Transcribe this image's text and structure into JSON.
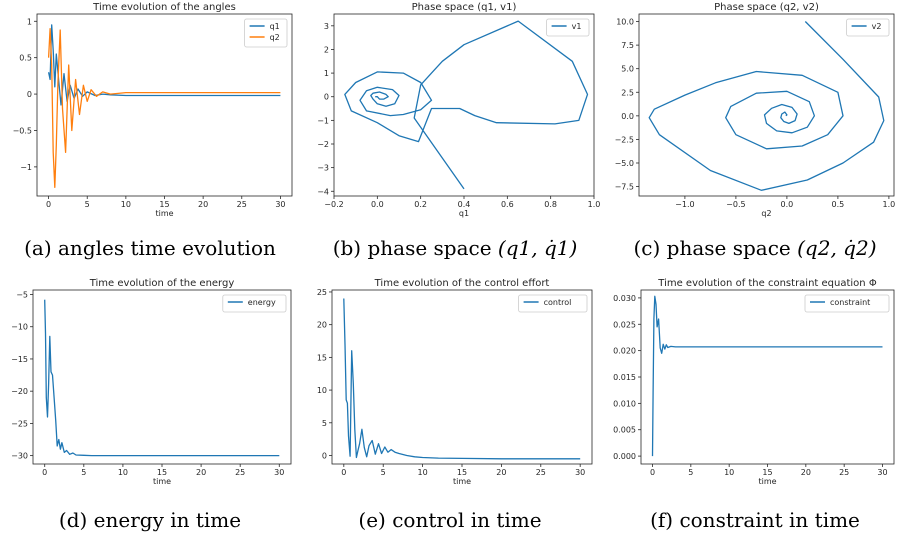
{
  "captions": {
    "a": "(a) angles time evolution",
    "b_prefix": "(b) phase space",
    "b_math": "(q1, q̇1)",
    "c_prefix": "(c) phase space",
    "c_math": "(q2, q̇2)",
    "d": "(d) energy in time",
    "e": "(e) control in time",
    "f": "(f) constraint in time"
  },
  "colors": {
    "series1": "#1f77b4",
    "series2": "#ff7f0e",
    "axis": "#262626"
  },
  "chart_data": [
    {
      "id": "a",
      "type": "line",
      "title": "Time evolution of the angles",
      "xlabel": "time",
      "ylabel": "",
      "xlim": [
        -1.5,
        31.5
      ],
      "ylim": [
        -1.4,
        1.1
      ],
      "xticks": [
        0,
        5,
        10,
        15,
        20,
        25,
        30
      ],
      "yticks": [
        -1.0,
        -0.5,
        0.0,
        0.5,
        1.0
      ],
      "legend": "top-right",
      "series": [
        {
          "name": "q1",
          "color": "#1f77b4",
          "x": [
            0,
            0.2,
            0.4,
            0.6,
            0.8,
            1.0,
            1.3,
            1.6,
            2.0,
            2.4,
            2.8,
            3.3,
            3.8,
            4.4,
            5.0,
            6.0,
            7.0,
            8.0,
            10,
            15,
            20,
            25,
            30
          ],
          "y": [
            0.3,
            0.2,
            0.95,
            0.6,
            0.1,
            0.55,
            0.2,
            -0.15,
            0.28,
            -0.1,
            0.12,
            -0.06,
            0.07,
            -0.03,
            0.03,
            -0.02,
            0.0,
            -0.01,
            -0.02,
            -0.02,
            -0.02,
            -0.02,
            -0.02
          ]
        },
        {
          "name": "q2",
          "color": "#ff7f0e",
          "x": [
            0,
            0.2,
            0.4,
            0.6,
            0.8,
            1.0,
            1.2,
            1.5,
            1.8,
            2.2,
            2.6,
            3.0,
            3.5,
            4.0,
            4.5,
            5.0,
            5.5,
            6.2,
            7.0,
            8.0,
            10,
            15,
            20,
            25,
            30
          ],
          "y": [
            0.5,
            0.9,
            0.4,
            -0.8,
            -1.28,
            -0.7,
            0.15,
            0.88,
            -0.2,
            -0.8,
            0.4,
            -0.5,
            0.2,
            -0.28,
            0.12,
            -0.1,
            0.06,
            -0.03,
            0.03,
            0.0,
            0.02,
            0.02,
            0.02,
            0.02,
            0.02
          ]
        }
      ]
    },
    {
      "id": "b",
      "type": "line",
      "title": "Phase space (q1, v1)",
      "xlabel": "q1",
      "ylabel": "",
      "xlim": [
        -0.2,
        1.0
      ],
      "ylim": [
        -4.2,
        3.5
      ],
      "xticks": [
        -0.2,
        0.0,
        0.2,
        0.4,
        0.6,
        0.8,
        1.0
      ],
      "xticklabels": [
        "−0.2",
        "0.0",
        "0.2",
        "0.4",
        "0.6",
        "0.8",
        "1.0"
      ],
      "yticks": [
        -4,
        -3,
        -2,
        -1,
        0,
        1,
        2,
        3
      ],
      "legend": "top-right",
      "series": [
        {
          "name": "v1",
          "color": "#1f77b4",
          "x": [
            0.4,
            0.17,
            0.2,
            0.25,
            0.3,
            0.4,
            0.65,
            0.9,
            0.97,
            0.93,
            0.82,
            0.55,
            0.45,
            0.38,
            0.25,
            0.19,
            0.1,
            0.0,
            -0.12,
            -0.15,
            -0.1,
            0.0,
            0.12,
            0.2,
            0.25,
            0.2,
            0.12,
            0.06,
            -0.05,
            -0.08,
            -0.05,
            0.0,
            0.07,
            0.1,
            0.08,
            0.04,
            0.0,
            -0.02,
            -0.03,
            -0.02,
            0.01,
            0.04,
            0.05,
            0.03,
            0.01,
            0.0,
            -0.01
          ],
          "y": [
            -3.9,
            -0.9,
            0.5,
            1.0,
            1.5,
            2.2,
            3.2,
            1.5,
            0.1,
            -1.0,
            -1.15,
            -1.1,
            -0.8,
            -0.5,
            -0.5,
            -1.9,
            -1.65,
            -1.1,
            -0.6,
            0.1,
            0.6,
            1.05,
            1.0,
            0.6,
            -0.15,
            -0.55,
            -0.75,
            -0.8,
            -0.6,
            -0.15,
            0.25,
            0.4,
            0.3,
            0.05,
            -0.3,
            -0.4,
            -0.3,
            -0.1,
            0.05,
            0.15,
            0.2,
            0.1,
            0.0,
            -0.1,
            -0.1,
            0.0,
            0.0
          ]
        }
      ]
    },
    {
      "id": "c",
      "type": "line",
      "title": "Phase space (q2, v2)",
      "xlabel": "q2",
      "ylabel": "",
      "xlim": [
        -1.45,
        1.05
      ],
      "ylim": [
        -8.5,
        10.8
      ],
      "xticks": [
        -1.0,
        -0.5,
        0.0,
        0.5,
        1.0
      ],
      "xticklabels": [
        "−1.0",
        "−0.5",
        "0.0",
        "0.5",
        "1.0"
      ],
      "yticks": [
        -7.5,
        -5.0,
        -2.5,
        0.0,
        2.5,
        5.0,
        7.5,
        10.0
      ],
      "yticklabels": [
        "−7.5",
        "−5.0",
        "−2.5",
        "0.0",
        "2.5",
        "5.0",
        "7.5",
        "10.0"
      ],
      "legend": "top-right",
      "series": [
        {
          "name": "v2",
          "color": "#1f77b4",
          "x": [
            0.18,
            0.55,
            0.9,
            0.95,
            0.85,
            0.55,
            0.2,
            -0.25,
            -0.75,
            -1.25,
            -1.35,
            -1.3,
            -1.0,
            -0.7,
            -0.3,
            0.15,
            0.5,
            0.55,
            0.4,
            0.15,
            -0.2,
            -0.5,
            -0.6,
            -0.55,
            -0.3,
            0.0,
            0.22,
            0.27,
            0.2,
            0.05,
            -0.1,
            -0.2,
            -0.22,
            -0.15,
            -0.05,
            0.05,
            0.1,
            0.08,
            0.02,
            -0.03,
            -0.06,
            -0.05,
            -0.02,
            0.0,
            -0.01
          ],
          "y": [
            10.0,
            6.0,
            2.0,
            -0.5,
            -2.8,
            -5.0,
            -6.8,
            -7.9,
            -5.8,
            -2.0,
            -0.2,
            0.7,
            2.2,
            3.5,
            4.7,
            4.3,
            2.5,
            0.0,
            -2.0,
            -3.2,
            -3.5,
            -2.0,
            -0.2,
            1.0,
            2.4,
            2.6,
            1.5,
            0.0,
            -1.2,
            -1.8,
            -1.6,
            -0.8,
            0.1,
            0.8,
            1.2,
            0.9,
            0.2,
            -0.5,
            -0.8,
            -0.6,
            -0.2,
            0.2,
            0.4,
            0.1,
            0.0
          ]
        }
      ]
    },
    {
      "id": "d",
      "type": "line",
      "title": "Time evolution of the energy",
      "xlabel": "time",
      "ylabel": "",
      "xlim": [
        -1.5,
        31.5
      ],
      "ylim": [
        -31.3,
        -4.3
      ],
      "xticks": [
        0,
        5,
        10,
        15,
        20,
        25,
        30
      ],
      "yticks": [
        -30,
        -25,
        -20,
        -15,
        -10,
        -5
      ],
      "yticklabels": [
        "−30",
        "−25",
        "−20",
        "−15",
        "−10",
        "−5"
      ],
      "legend": "top-right",
      "series": [
        {
          "name": "energy",
          "color": "#1f77b4",
          "x": [
            0,
            0.1,
            0.2,
            0.35,
            0.5,
            0.65,
            0.8,
            1.0,
            1.2,
            1.4,
            1.6,
            1.8,
            2.0,
            2.2,
            2.5,
            2.8,
            3.2,
            3.6,
            4.0,
            5.0,
            6.0,
            8.0,
            10,
            15,
            20,
            25,
            30
          ],
          "y": [
            -5.8,
            -11,
            -21,
            -24,
            -19,
            -11.5,
            -17,
            -17.5,
            -21,
            -24.5,
            -28.5,
            -27.5,
            -29.0,
            -28.0,
            -29.5,
            -29.2,
            -29.8,
            -29.6,
            -29.9,
            -29.95,
            -30,
            -30,
            -30,
            -30,
            -30,
            -30,
            -30
          ]
        }
      ]
    },
    {
      "id": "e",
      "type": "line",
      "title": "Time evolution of the control effort",
      "xlabel": "time",
      "ylabel": "",
      "xlim": [
        -1.5,
        31.5
      ],
      "ylim": [
        -1.3,
        25.3
      ],
      "xticks": [
        0,
        5,
        10,
        15,
        20,
        25,
        30
      ],
      "yticks": [
        0,
        5,
        10,
        15,
        20,
        25
      ],
      "legend": "top-right",
      "series": [
        {
          "name": "control",
          "color": "#1f77b4",
          "x": [
            0,
            0.15,
            0.3,
            0.45,
            0.6,
            0.8,
            1.0,
            1.2,
            1.4,
            1.6,
            1.8,
            2.0,
            2.3,
            2.6,
            2.9,
            3.2,
            3.6,
            4.0,
            4.4,
            4.8,
            5.2,
            5.6,
            6.0,
            6.5,
            7.0,
            8.0,
            9.0,
            10,
            12,
            15,
            20,
            25,
            30
          ],
          "y": [
            24,
            17,
            8.5,
            8,
            3,
            -0.1,
            16,
            11,
            4,
            -0.3,
            0.8,
            1.8,
            4.0,
            1.2,
            -0.2,
            1.5,
            2.3,
            0.2,
            1.8,
            0.3,
            1.3,
            0.5,
            0.9,
            0.5,
            0.3,
            0.0,
            -0.2,
            -0.3,
            -0.4,
            -0.45,
            -0.5,
            -0.5,
            -0.5
          ]
        }
      ]
    },
    {
      "id": "f",
      "type": "line",
      "title": "Time evolution of the constraint equation Φ",
      "xlabel": "time",
      "ylabel": "",
      "xlim": [
        -1.5,
        31.5
      ],
      "ylim": [
        -0.0015,
        0.0315
      ],
      "xticks": [
        0,
        5,
        10,
        15,
        20,
        25,
        30
      ],
      "yticks": [
        0.0,
        0.005,
        0.01,
        0.015,
        0.02,
        0.025,
        0.03
      ],
      "yticklabels": [
        "0.000",
        "0.005",
        "0.010",
        "0.015",
        "0.020",
        "0.025",
        "0.030"
      ],
      "legend": "top-right",
      "series": [
        {
          "name": "constraint",
          "color": "#1f77b4",
          "x": [
            0,
            0.08,
            0.18,
            0.3,
            0.45,
            0.6,
            0.8,
            1.0,
            1.2,
            1.4,
            1.6,
            1.8,
            2.0,
            2.4,
            3.0,
            5.0,
            10,
            15,
            20,
            25,
            30
          ],
          "y": [
            0.0,
            0.012,
            0.026,
            0.0303,
            0.0288,
            0.0245,
            0.026,
            0.0205,
            0.0195,
            0.0212,
            0.0203,
            0.0211,
            0.0206,
            0.0208,
            0.0207,
            0.0207,
            0.0207,
            0.0207,
            0.0207,
            0.0207,
            0.0207
          ]
        }
      ]
    }
  ]
}
